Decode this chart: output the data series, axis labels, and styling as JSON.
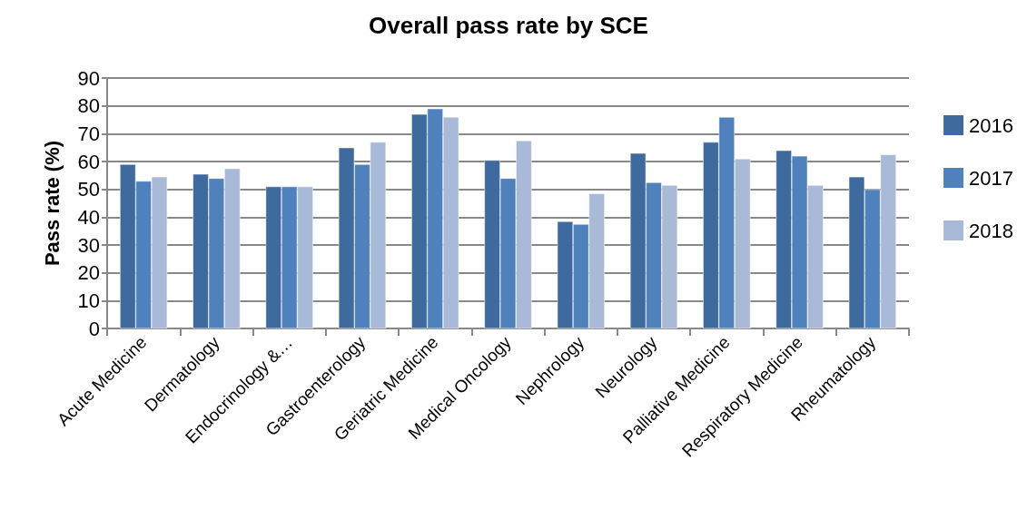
{
  "chart_data": {
    "type": "bar",
    "title": "Overall pass rate by SCE",
    "ylabel": "Pass rate (%)",
    "categories": [
      "Acute Medicine",
      "Dermatology",
      "Endocrinology &…",
      "Gastroenterology",
      "Geriatric Medicine",
      "Medical Oncology",
      "Nephrology",
      "Neurology",
      "Palliative Medicine",
      "Respiratory Medicine",
      "Rheumatology"
    ],
    "series": [
      {
        "name": "2016",
        "color": "#3f6a9e",
        "values": [
          59,
          55.5,
          51,
          65,
          77,
          60.5,
          38.5,
          63,
          67,
          64,
          54.5
        ]
      },
      {
        "name": "2017",
        "color": "#4f81bd",
        "values": [
          53,
          54,
          51,
          59,
          79,
          54,
          37.5,
          52.5,
          76,
          62,
          50
        ]
      },
      {
        "name": "2018",
        "color": "#a9b9d8",
        "values": [
          54.5,
          57.5,
          51,
          67,
          76,
          67.5,
          48.5,
          51.5,
          61,
          51.5,
          62.5
        ]
      }
    ],
    "ylim": [
      0,
      90
    ],
    "yticks": [
      0,
      10,
      20,
      30,
      40,
      50,
      60,
      70,
      80,
      90
    ],
    "grid": "y",
    "legend": "right"
  }
}
